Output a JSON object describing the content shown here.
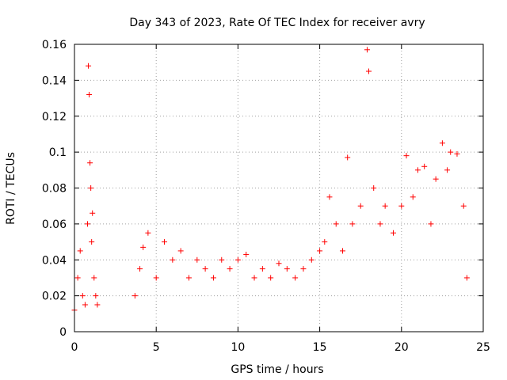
{
  "chart_data": {
    "type": "scatter",
    "title": "Day 343 of 2023, Rate Of TEC Index for receiver avry",
    "xlabel": "GPS time / hours",
    "ylabel": "ROTI / TECUs",
    "xlim": [
      0,
      25
    ],
    "ylim": [
      0,
      0.16
    ],
    "xticks": [
      0,
      5,
      10,
      15,
      20,
      25
    ],
    "xtick_labels": [
      "0",
      "5",
      "10",
      "15",
      "20",
      "25"
    ],
    "yticks": [
      0,
      0.02,
      0.04,
      0.06,
      0.08,
      0.1,
      0.12,
      0.14,
      0.16
    ],
    "ytick_labels": [
      "0",
      "0.02",
      "0.04",
      "0.06",
      "0.08",
      "0.1",
      "0.12",
      "0.14",
      "0.16"
    ],
    "grid": true,
    "marker": "+",
    "series_color": "#ff0000",
    "series": [
      {
        "name": "ROTI",
        "x": [
          0.0,
          0.2,
          0.35,
          0.5,
          0.65,
          0.8,
          0.85,
          0.9,
          0.95,
          1.0,
          1.05,
          1.1,
          1.2,
          1.3,
          1.4,
          3.7,
          4.0,
          4.2,
          4.5,
          5.0,
          5.5,
          6.0,
          6.5,
          7.0,
          7.5,
          8.0,
          8.5,
          9.0,
          9.5,
          10.0,
          10.5,
          11.0,
          11.5,
          12.0,
          12.5,
          13.0,
          13.5,
          14.0,
          14.5,
          15.0,
          15.3,
          15.6,
          16.0,
          16.4,
          16.7,
          17.0,
          17.5,
          17.9,
          18.0,
          18.3,
          18.7,
          19.0,
          19.5,
          20.0,
          20.3,
          20.7,
          21.0,
          21.4,
          21.8,
          22.1,
          22.5,
          22.8,
          23.0,
          23.4,
          23.8,
          24.0
        ],
        "y": [
          0.012,
          0.03,
          0.045,
          0.02,
          0.015,
          0.06,
          0.148,
          0.132,
          0.094,
          0.08,
          0.05,
          0.066,
          0.03,
          0.02,
          0.015,
          0.02,
          0.035,
          0.047,
          0.055,
          0.03,
          0.05,
          0.04,
          0.045,
          0.03,
          0.04,
          0.035,
          0.03,
          0.04,
          0.035,
          0.04,
          0.043,
          0.03,
          0.035,
          0.03,
          0.038,
          0.035,
          0.03,
          0.035,
          0.04,
          0.045,
          0.05,
          0.075,
          0.06,
          0.045,
          0.097,
          0.06,
          0.07,
          0.157,
          0.145,
          0.08,
          0.06,
          0.07,
          0.055,
          0.07,
          0.098,
          0.075,
          0.09,
          0.092,
          0.06,
          0.085,
          0.105,
          0.09,
          0.1,
          0.099,
          0.07,
          0.03
        ]
      }
    ]
  }
}
